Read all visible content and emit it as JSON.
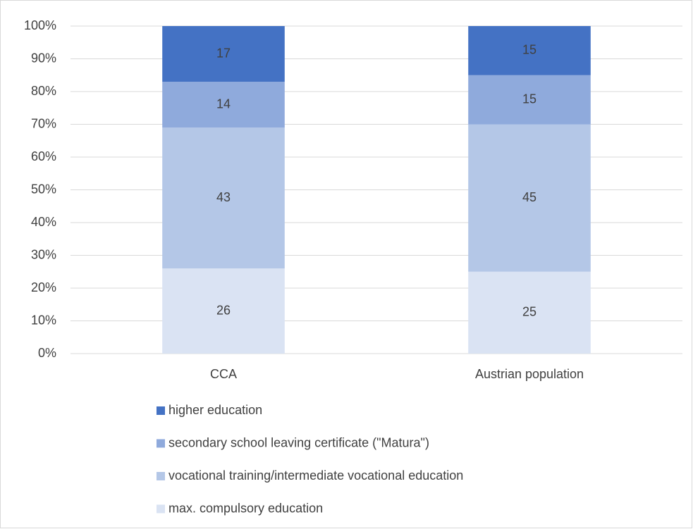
{
  "chart_data": {
    "type": "stacked_bar",
    "categories": [
      "CCA",
      "Austrian population"
    ],
    "series": [
      {
        "name": "max. compulsory education",
        "color": "#dae3f3",
        "values": [
          26,
          25
        ]
      },
      {
        "name": "vocational training/intermediate vocational education",
        "color": "#b4c7e7",
        "values": [
          43,
          45
        ]
      },
      {
        "name": "secondary school leaving certificate (\"Matura\")",
        "color": "#8faadc",
        "values": [
          14,
          15
        ]
      },
      {
        "name": "higher education",
        "color": "#4472c4",
        "values": [
          17,
          15
        ]
      }
    ],
    "ylim": [
      0,
      100
    ],
    "yticks": [
      {
        "value": 0,
        "label": "0%"
      },
      {
        "value": 10,
        "label": "10%"
      },
      {
        "value": 20,
        "label": "20%"
      },
      {
        "value": 30,
        "label": "30%"
      },
      {
        "value": 40,
        "label": "40%"
      },
      {
        "value": 50,
        "label": "50%"
      },
      {
        "value": 60,
        "label": "60%"
      },
      {
        "value": 70,
        "label": "70%"
      },
      {
        "value": 80,
        "label": "80%"
      },
      {
        "value": 90,
        "label": "90%"
      },
      {
        "value": 100,
        "label": "100%"
      }
    ],
    "grid": true,
    "legend": "bottom"
  }
}
